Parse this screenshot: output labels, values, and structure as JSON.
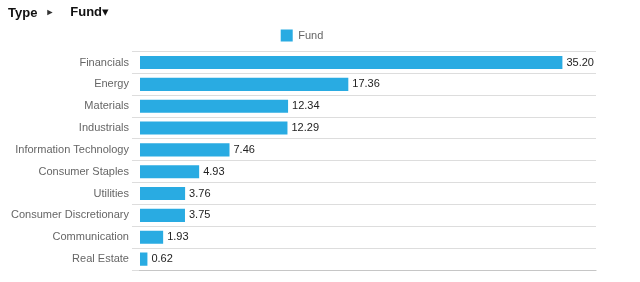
{
  "chart_data": {
    "type": "bar",
    "orientation": "horizontal",
    "title": "Type",
    "annotations": [
      "►",
      "Fund▾"
    ],
    "categories": [
      "Financials",
      "Energy",
      "Materials",
      "Industrials",
      "Information Technology",
      "Consumer Staples",
      "Utilities",
      "Consumer Discretionary",
      "Communication",
      "Real Estate"
    ],
    "series": [
      {
        "name": "Fund",
        "color": "#29ABE2",
        "values": [
          35.2,
          17.36,
          12.34,
          12.29,
          7.46,
          4.93,
          3.76,
          3.75,
          1.93,
          0.62
        ],
        "value_labels": [
          "35.20",
          "17.36",
          "12.34",
          "12.29",
          "7.46",
          "4.93",
          "3.76",
          "3.75",
          "1.93",
          "0.62"
        ]
      }
    ],
    "xlim": [
      0,
      38
    ],
    "data_labels": true,
    "tick_labels": "y",
    "grid": true,
    "legend": "top"
  }
}
